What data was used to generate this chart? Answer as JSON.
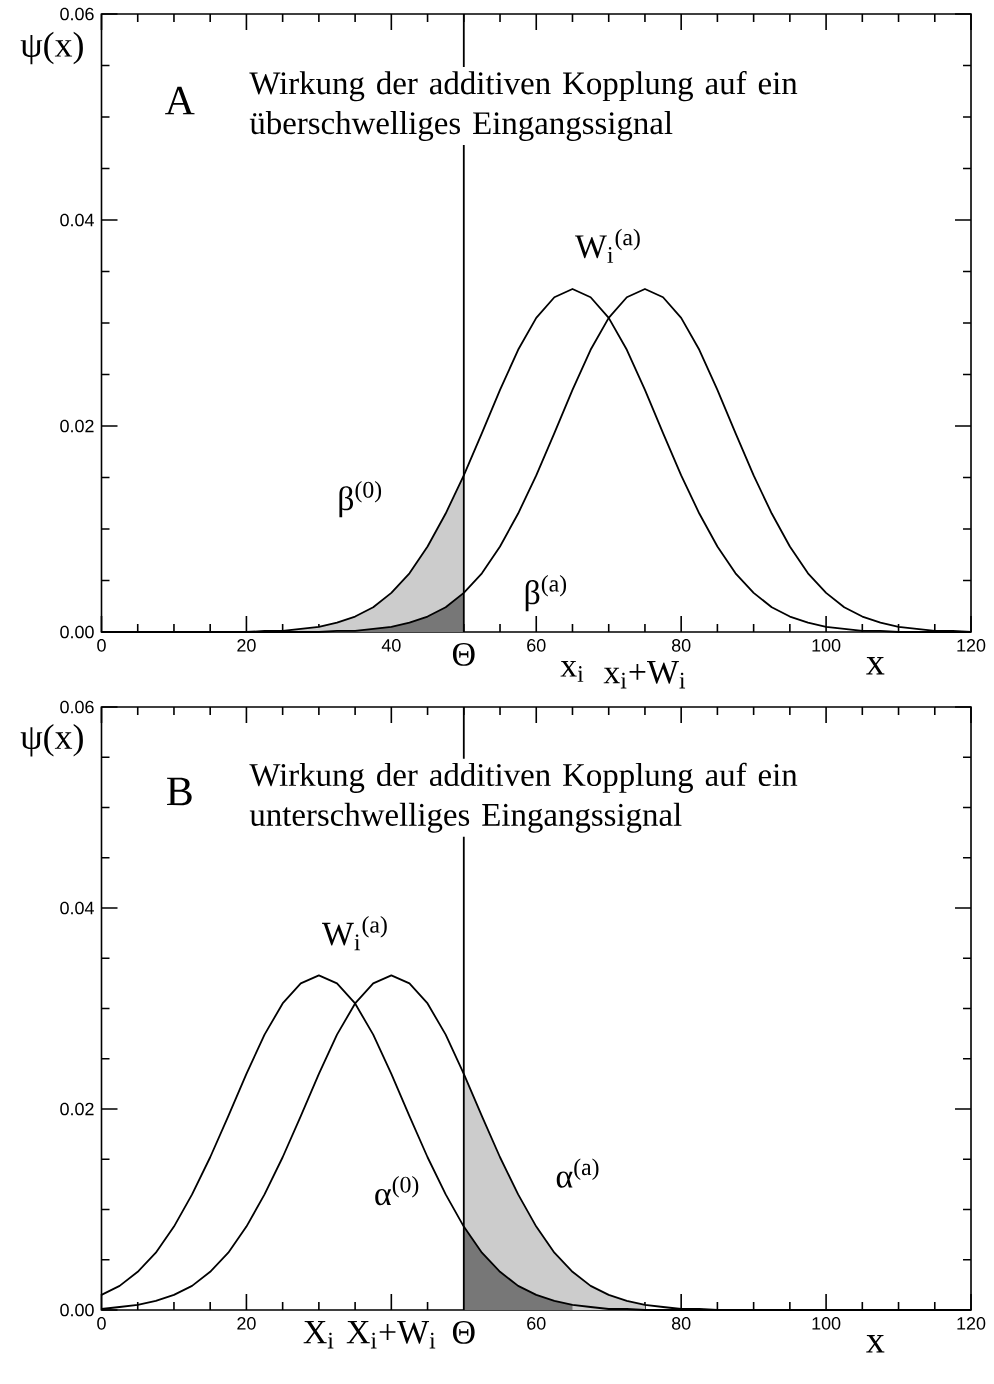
{
  "chart_data": [
    {
      "type": "line",
      "title": "A",
      "subtitle": "Wirkung der additiven Kopplung auf ein überschwelliges Eingangssignal",
      "xlabel": "x",
      "ylabel": "ψ(x)",
      "xlim": [
        0,
        120
      ],
      "ylim": [
        0,
        0.06
      ],
      "xticks": [
        0,
        20,
        40,
        60,
        80,
        100,
        120
      ],
      "yticks": [
        {
          "value": 0,
          "label": "0.00"
        },
        {
          "value": 0.02,
          "label": "0.02"
        },
        {
          "value": 0.04,
          "label": "0.04"
        },
        {
          "value": 0.06,
          "label": "0.06"
        }
      ],
      "x": [
        0,
        2.5,
        5,
        7.5,
        10,
        12.5,
        15,
        17.5,
        20,
        22.5,
        25,
        27.5,
        30,
        32.5,
        35,
        37.5,
        40,
        42.5,
        45,
        47.5,
        50,
        52.5,
        55,
        57.5,
        60,
        62.5,
        65,
        67.5,
        70,
        72.5,
        75,
        77.5,
        80,
        82.5,
        85,
        87.5,
        90,
        92.5,
        95,
        97.5,
        100,
        102.5,
        105,
        107.5,
        110,
        112.5,
        115,
        117.5,
        120
      ],
      "series": [
        {
          "type": "area",
          "color": "#cccccc",
          "x": [
            25,
            27.5,
            30,
            32.5,
            35,
            37.5,
            40,
            42.5,
            45,
            47.5,
            50
          ],
          "values": [
            0.0001,
            0.0003,
            0.0005,
            0.0009,
            0.0015,
            0.0024,
            0.0038,
            0.0057,
            0.0083,
            0.0115,
            0.0152
          ]
        },
        {
          "type": "area",
          "color": "#777777",
          "x": [
            30,
            32.5,
            35,
            37.5,
            40,
            42.5,
            45,
            47.5,
            50
          ],
          "values": [
            0,
            0.0001,
            0.0001,
            0.0003,
            0.0005,
            0.0009,
            0.0015,
            0.0024,
            0.0038
          ]
        },
        {
          "color": "#000000",
          "values": [
            0,
            0,
            0,
            0,
            0,
            0,
            0,
            0,
            0,
            0.0001,
            0.0001,
            0.0003,
            0.0005,
            0.0009,
            0.0015,
            0.0024,
            0.0038,
            0.0057,
            0.0083,
            0.0115,
            0.0152,
            0.0193,
            0.0235,
            0.0274,
            0.0305,
            0.0325,
            0.0333,
            0.0325,
            0.0305,
            0.0274,
            0.0235,
            0.0193,
            0.0152,
            0.0115,
            0.0083,
            0.0057,
            0.0038,
            0.0024,
            0.0015,
            0.0009,
            0.0005,
            0.0003,
            0.0001,
            0.0001,
            0,
            0,
            0,
            0,
            0
          ]
        },
        {
          "color": "#000000",
          "values": [
            0,
            0,
            0,
            0,
            0,
            0,
            0,
            0,
            0,
            0,
            0,
            0,
            0,
            0.0001,
            0.0001,
            0.0003,
            0.0005,
            0.0009,
            0.0015,
            0.0024,
            0.0038,
            0.0057,
            0.0083,
            0.0115,
            0.0152,
            0.0193,
            0.0235,
            0.0274,
            0.0305,
            0.0325,
            0.0333,
            0.0325,
            0.0305,
            0.0274,
            0.0235,
            0.0193,
            0.0152,
            0.0115,
            0.0083,
            0.0057,
            0.0038,
            0.0024,
            0.0015,
            0.0009,
            0.0005,
            0.0003,
            0.0001,
            0.0001,
            0
          ]
        }
      ],
      "ref_lines": [
        {
          "axis": "x",
          "value": 50,
          "label": "Θ",
          "color": "#000000"
        }
      ],
      "annotations": [
        "β$^{(0)}$",
        "β$^{(a)}$",
        "W$_{i}$$^{(a)}$",
        {
          "text": "x$_{i}$",
          "x": 65
        },
        {
          "text": "x$_{i}$+W$_{i}$",
          "x": 75
        }
      ]
    },
    {
      "type": "line",
      "title": "B",
      "subtitle": "Wirkung der additiven Kopplung auf ein unterschwelliges Eingangssignal",
      "xlabel": "x",
      "ylabel": "ψ(x)",
      "xlim": [
        0,
        120
      ],
      "ylim": [
        0,
        0.06
      ],
      "xticks": [
        0,
        20,
        {
          "value": 40,
          "label": null
        },
        60,
        80,
        100,
        120
      ],
      "yticks": [
        {
          "value": 0,
          "label": "0.00"
        },
        {
          "value": 0.02,
          "label": "0.02"
        },
        {
          "value": 0.04,
          "label": "0.04"
        },
        {
          "value": 0.06,
          "label": "0.06"
        }
      ],
      "x": [
        0,
        2.5,
        5,
        7.5,
        10,
        12.5,
        15,
        17.5,
        20,
        22.5,
        25,
        27.5,
        30,
        32.5,
        35,
        37.5,
        40,
        42.5,
        45,
        47.5,
        50,
        52.5,
        55,
        57.5,
        60,
        62.5,
        65,
        67.5,
        70,
        72.5,
        75,
        77.5,
        80,
        82.5,
        85,
        87.5,
        90,
        92.5,
        95,
        97.5,
        100,
        102.5,
        105,
        107.5,
        110,
        112.5,
        115,
        117.5,
        120
      ],
      "series": [
        {
          "type": "area",
          "color": "#cccccc",
          "x": [
            50,
            52.5,
            55,
            57.5,
            60,
            62.5,
            65,
            67.5,
            70,
            72.5,
            75
          ],
          "values": [
            0.0235,
            0.0193,
            0.0152,
            0.0115,
            0.0083,
            0.0057,
            0.0038,
            0.0024,
            0.0015,
            0.0009,
            0.0005
          ]
        },
        {
          "type": "area",
          "color": "#777777",
          "x": [
            50,
            52.5,
            55,
            57.5,
            60,
            62.5,
            65
          ],
          "values": [
            0.0083,
            0.0057,
            0.0038,
            0.0024,
            0.0015,
            0.0009,
            0.0005
          ]
        },
        {
          "color": "#000000",
          "values": [
            0.0015,
            0.0024,
            0.0038,
            0.0057,
            0.0083,
            0.0115,
            0.0152,
            0.0193,
            0.0235,
            0.0274,
            0.0305,
            0.0325,
            0.0333,
            0.0325,
            0.0305,
            0.0274,
            0.0235,
            0.0193,
            0.0152,
            0.0115,
            0.0083,
            0.0057,
            0.0038,
            0.0024,
            0.0015,
            0.0009,
            0.0005,
            0.0003,
            0.0001,
            0.0001,
            0,
            0,
            0,
            0,
            0,
            0,
            0,
            0,
            0,
            0,
            0,
            0,
            0,
            0,
            0,
            0,
            0,
            0,
            0
          ]
        },
        {
          "color": "#000000",
          "values": [
            0.0001,
            0.0003,
            0.0005,
            0.0009,
            0.0015,
            0.0024,
            0.0038,
            0.0057,
            0.0083,
            0.0115,
            0.0152,
            0.0193,
            0.0235,
            0.0274,
            0.0305,
            0.0325,
            0.0333,
            0.0325,
            0.0305,
            0.0274,
            0.0235,
            0.0193,
            0.0152,
            0.0115,
            0.0083,
            0.0057,
            0.0038,
            0.0024,
            0.0015,
            0.0009,
            0.0005,
            0.0003,
            0.0001,
            0.0001,
            0,
            0,
            0,
            0,
            0,
            0,
            0,
            0,
            0,
            0,
            0,
            0,
            0,
            0,
            0
          ]
        }
      ],
      "ref_lines": [
        {
          "axis": "x",
          "value": 50,
          "label": "Θ",
          "color": "#000000"
        }
      ],
      "annotations": [
        "α$^{(0)}$",
        "α$^{(a)}$",
        "W$_{i}$$^{(a)}$",
        {
          "text": "X$_{i}$",
          "x": 30
        },
        {
          "text": "X$_{i}$+W$_{i}$",
          "x": 40
        }
      ]
    }
  ]
}
